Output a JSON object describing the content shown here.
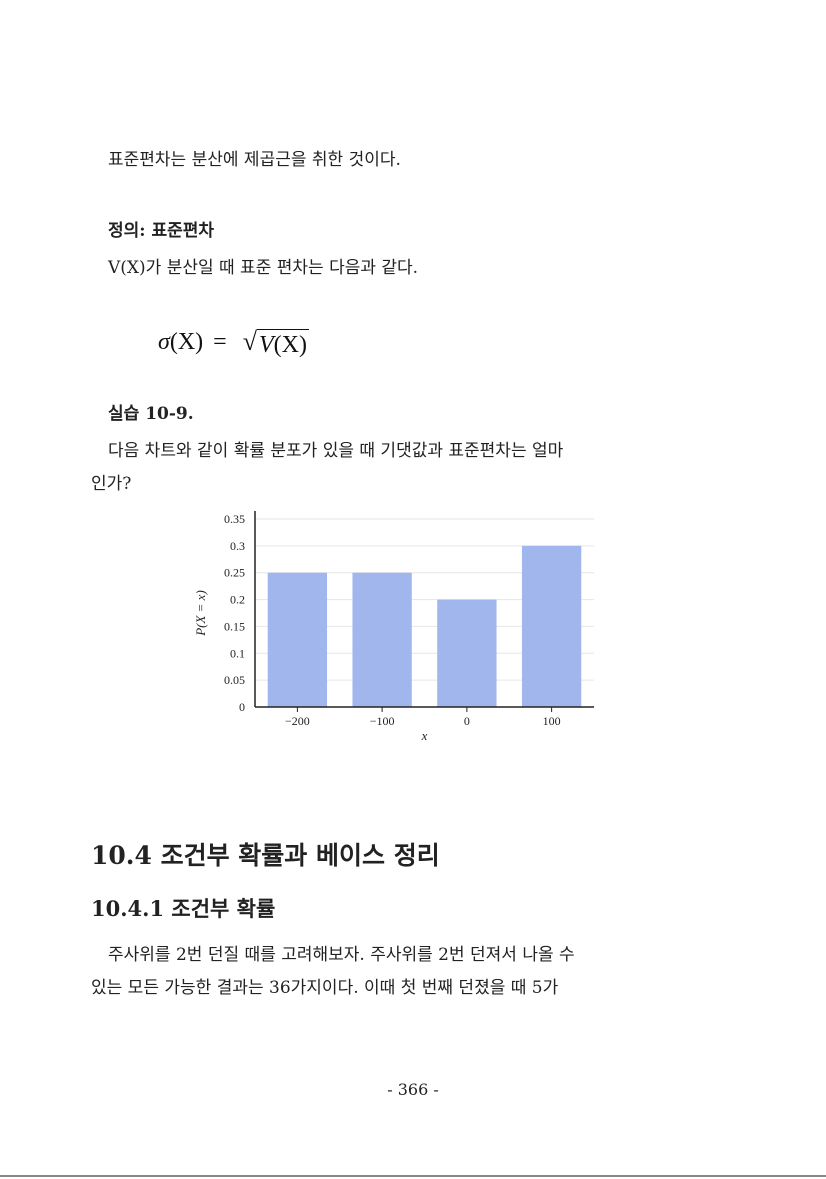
{
  "intro": "표준편차는 분산에 제곱근을 취한 것이다.",
  "definition": {
    "title": "정의: 표준편차",
    "body": "V(X)가 분산일 때 표준 편차는 다음과 같다.",
    "formula": {
      "lhs_sigma": "σ",
      "lhs_arg": "(X)",
      "eq": "=",
      "sqrt_symbol": "√",
      "radicand_v": "V",
      "radicand_arg": "(X)"
    }
  },
  "exercise": {
    "title": "실습 10-9.",
    "line1": "다음 차트와 같이 확률 분포가 있을 때 기댓값과 표준편차는 얼마",
    "line2": "인가?"
  },
  "chart_data": {
    "type": "bar",
    "categories": [
      "−200",
      "−100",
      "0",
      "100"
    ],
    "values": [
      0.25,
      0.25,
      0.2,
      0.3
    ],
    "xlabel": "x",
    "ylabel": "P(X = x)",
    "ylim": [
      0,
      0.35
    ],
    "yticks": [
      "0",
      "0.05",
      "0.1",
      "0.15",
      "0.2",
      "0.25",
      "0.3",
      "0.35"
    ],
    "ytick_values": [
      0,
      0.05,
      0.1,
      0.15,
      0.2,
      0.25,
      0.3,
      0.35
    ],
    "grid": true,
    "bar_color": "#a0b6ec"
  },
  "section": {
    "heading": "10.4 조건부 확률과 베이스 정리",
    "subheading": "10.4.1 조건부 확률",
    "para_line1": "주사위를 2번 던질 때를 고려해보자. 주사위를 2번 던져서 나올 수",
    "para_line2": "있는 모든 가능한 결과는 36가지이다. 이때 첫 번째 던졌을 때 5가"
  },
  "page_number": "- 366 -"
}
